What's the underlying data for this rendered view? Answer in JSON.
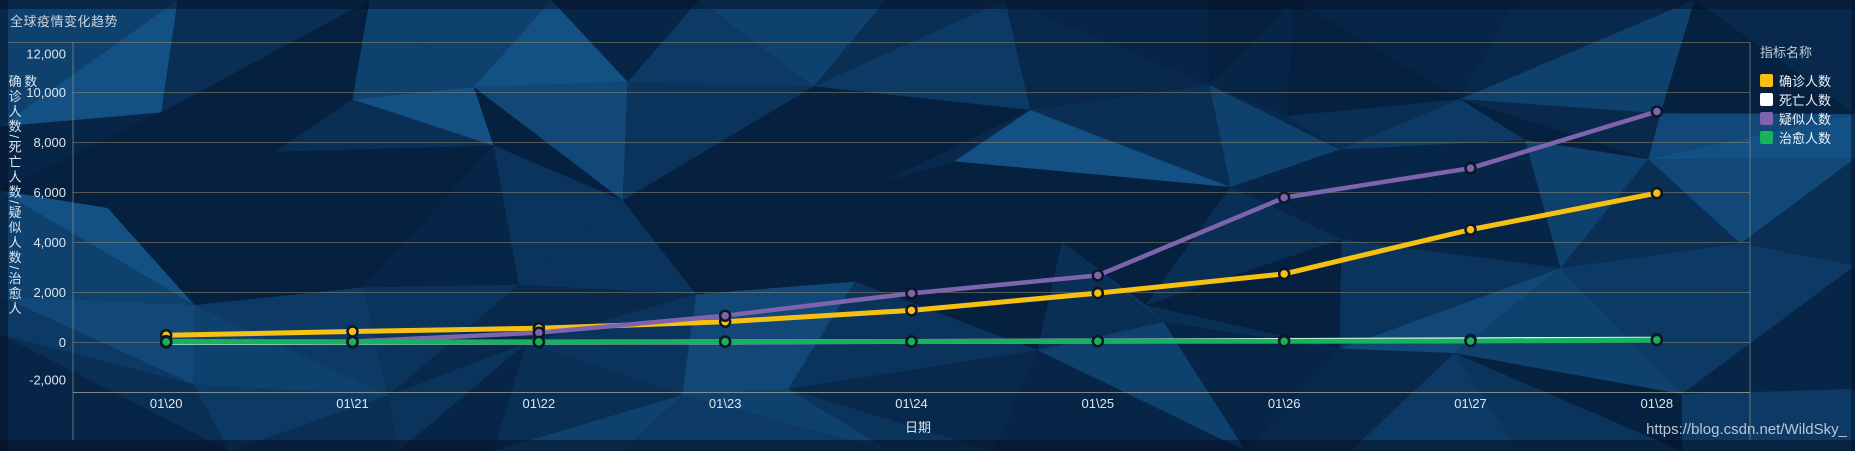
{
  "page": {
    "title": "全球疫情变化趋势",
    "watermark": "https://blog.csdn.net/WildSky_"
  },
  "legend": {
    "title": "指标名称"
  },
  "chart_data": {
    "type": "line",
    "title": "全球疫情变化趋势",
    "xlabel": "日期",
    "ylabel": "确诊人数/死亡人数/疑似人数/治愈人数",
    "categories": [
      "01\\20",
      "01\\21",
      "01\\22",
      "01\\23",
      "01\\24",
      "01\\25",
      "01\\26",
      "01\\27",
      "01\\28"
    ],
    "series": [
      {
        "name": "确诊人数",
        "color": "#F7C114",
        "values": [
          291,
          440,
          571,
          830,
          1287,
          1975,
          2744,
          4515,
          5974
        ]
      },
      {
        "name": "死亡人数",
        "color": "#FFFFFF",
        "values": [
          6,
          9,
          17,
          25,
          41,
          56,
          80,
          106,
          132
        ]
      },
      {
        "name": "疑似人数",
        "color": "#7E63AD",
        "values": [
          54,
          37,
          393,
          1072,
          1965,
          2684,
          5794,
          6973,
          9239
        ]
      },
      {
        "name": "治愈人数",
        "color": "#17B35C",
        "values": [
          25,
          25,
          25,
          34,
          38,
          49,
          51,
          60,
          103
        ]
      }
    ],
    "ylim": [
      -2000,
      12000
    ],
    "ytick_step": 2000,
    "grid": true,
    "legend_position": "right",
    "colors": {
      "background": "#0a2d52",
      "gridline": "rgba(158,142,108,0.5)",
      "axis_line": "rgba(160,160,148,0.6)",
      "tick_label": "#dde6ee"
    }
  }
}
